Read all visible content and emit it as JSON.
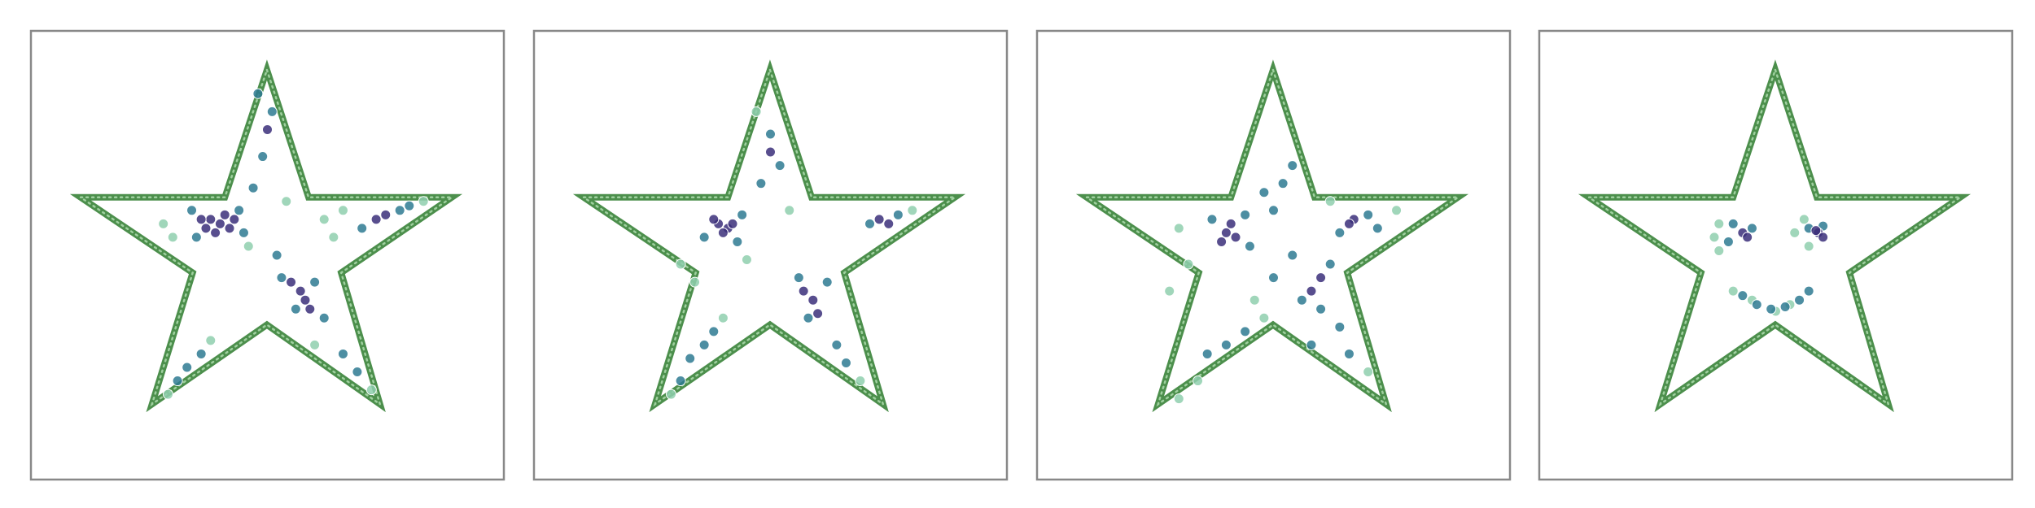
{
  "chart_data": [
    {
      "type": "scatter",
      "xlim": [
        0,
        100
      ],
      "ylim": [
        0,
        100
      ],
      "series": [
        {
          "style": "line",
          "color": "#4c8f4c",
          "x": [
            49.9,
            58.7,
            89.0,
            65.6,
            73.8,
            49.9,
            25.6,
            34.2,
            10.5,
            41.0
          ],
          "values": [
            91.3,
            62.9,
            62.9,
            46.1,
            16.8,
            34.5,
            16.8,
            46.1,
            62.9,
            62.9
          ]
        },
        {
          "color": "#8fcfae",
          "x": [
            30,
            28,
            64,
            62,
            66,
            46,
            54,
            72,
            38,
            29,
            83,
            60
          ],
          "values": [
            54,
            57,
            54,
            58,
            60,
            52,
            62,
            20,
            31,
            19,
            62,
            30
          ]
        },
        {
          "color": "#2e7a92",
          "x": [
            34,
            44,
            45,
            35,
            47,
            49,
            51,
            48,
            53,
            60,
            56,
            62,
            70,
            78,
            80,
            66,
            69,
            33,
            36,
            31,
            52
          ],
          "values": [
            60,
            60,
            55,
            54,
            65,
            72,
            82,
            86,
            45,
            44,
            38,
            36,
            56,
            60,
            61,
            28,
            24,
            25,
            28,
            22,
            50
          ]
        },
        {
          "color": "#3b2f7a",
          "x": [
            38,
            40,
            42,
            37,
            41,
            39,
            36,
            43,
            57,
            58,
            55,
            73,
            75,
            50,
            59
          ],
          "values": [
            58,
            57,
            56,
            56,
            59,
            55,
            58,
            58,
            42,
            40,
            44,
            58,
            59,
            78,
            38
          ]
        }
      ]
    },
    {
      "type": "scatter",
      "xlim": [
        0,
        100
      ],
      "ylim": [
        0,
        100
      ],
      "series": [
        {
          "style": "line",
          "color": "#4c8f4c",
          "x": [
            49.9,
            58.7,
            89.0,
            65.6,
            73.8,
            49.9,
            25.6,
            34.2,
            10.5,
            41.0
          ],
          "values": [
            91.3,
            62.9,
            62.9,
            46.1,
            16.8,
            34.5,
            16.8,
            46.1,
            62.9,
            62.9
          ]
        },
        {
          "color": "#8fcfae",
          "x": [
            34,
            31,
            45,
            80,
            69,
            40,
            29,
            47,
            54
          ],
          "values": [
            44,
            48,
            49,
            60,
            22,
            36,
            19,
            82,
            60
          ]
        },
        {
          "color": "#2e7a92",
          "x": [
            36,
            44,
            43,
            48,
            50,
            52,
            56,
            62,
            58,
            64,
            66,
            71,
            77,
            36,
            33,
            38,
            31
          ],
          "values": [
            54,
            59,
            53,
            66,
            77,
            70,
            45,
            44,
            36,
            30,
            26,
            57,
            59,
            30,
            27,
            33,
            22
          ]
        },
        {
          "color": "#3b2f7a",
          "x": [
            39,
            41,
            40,
            38,
            42,
            57,
            59,
            73,
            75,
            50,
            60
          ],
          "values": [
            57,
            56,
            55,
            58,
            57,
            42,
            40,
            58,
            57,
            73,
            37
          ]
        }
      ]
    },
    {
      "type": "scatter",
      "xlim": [
        0,
        100
      ],
      "ylim": [
        0,
        100
      ],
      "series": [
        {
          "style": "line",
          "color": "#4c8f4c",
          "x": [
            49.9,
            58.7,
            89.0,
            65.6,
            73.8,
            49.9,
            25.6,
            34.2,
            10.5,
            41.0
          ],
          "values": [
            91.3,
            62.9,
            62.9,
            46.1,
            16.8,
            34.5,
            16.8,
            46.1,
            62.9,
            62.9
          ]
        },
        {
          "color": "#8fcfae",
          "x": [
            32,
            30,
            76,
            70,
            34,
            30,
            48,
            62,
            46,
            28
          ],
          "values": [
            48,
            56,
            60,
            24,
            22,
            18,
            36,
            62,
            40,
            42
          ]
        },
        {
          "color": "#2e7a92",
          "x": [
            37,
            44,
            45,
            50,
            52,
            54,
            48,
            64,
            70,
            72,
            62,
            56,
            60,
            64,
            58,
            66,
            40,
            36,
            44,
            50,
            54
          ],
          "values": [
            58,
            59,
            52,
            60,
            66,
            70,
            64,
            55,
            59,
            56,
            48,
            40,
            38,
            34,
            30,
            28,
            30,
            28,
            33,
            45,
            50
          ]
        },
        {
          "color": "#3b2f7a",
          "x": [
            40,
            42,
            41,
            39,
            67,
            66,
            60,
            58
          ],
          "values": [
            55,
            54,
            57,
            53,
            58,
            57,
            45,
            42
          ]
        }
      ]
    },
    {
      "type": "scatter",
      "xlim": [
        0,
        100
      ],
      "ylim": [
        0,
        100
      ],
      "series": [
        {
          "style": "line",
          "color": "#4c8f4c",
          "x": [
            49.9,
            58.7,
            89.0,
            65.6,
            73.8,
            49.9,
            25.6,
            34.2,
            10.5,
            41.0
          ],
          "values": [
            91.3,
            62.9,
            62.9,
            46.1,
            16.8,
            34.5,
            16.8,
            46.1,
            62.9,
            62.9
          ]
        },
        {
          "color": "#8fcfae",
          "x": [
            38,
            37,
            38,
            56,
            54,
            57,
            41,
            53,
            50,
            45
          ],
          "values": [
            57,
            54,
            51,
            58,
            55,
            52,
            42,
            39,
            37.5,
            40
          ]
        },
        {
          "color": "#2e7a92",
          "x": [
            41,
            40,
            45,
            57,
            60,
            43,
            46,
            49,
            52,
            55,
            57
          ],
          "values": [
            57,
            53,
            56,
            56,
            56.5,
            41,
            39,
            38,
            38.5,
            40,
            42
          ]
        },
        {
          "color": "#3b2f7a",
          "x": [
            43,
            44,
            59,
            60,
            58.5
          ],
          "values": [
            55,
            54,
            55,
            54,
            55.5
          ]
        }
      ]
    }
  ]
}
